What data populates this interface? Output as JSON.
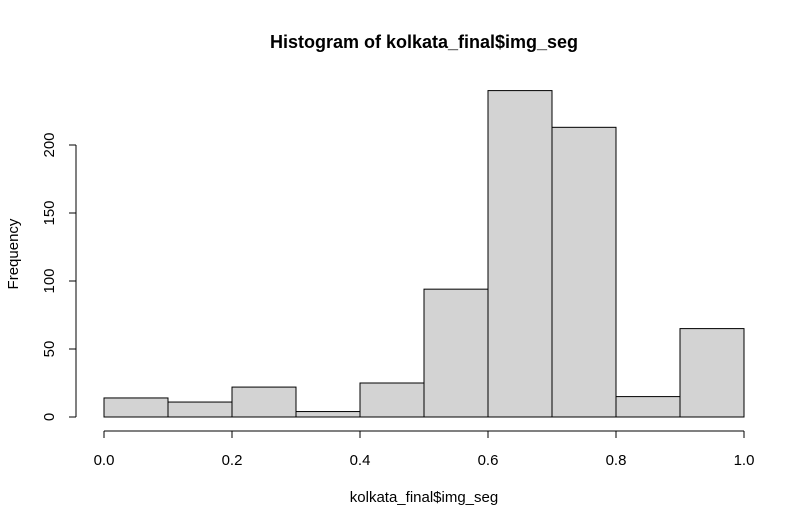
{
  "chart_data": {
    "type": "bar",
    "title": "Histogram of kolkata_final$img_seg",
    "xlabel": "kolkata_final$img_seg",
    "ylabel": "Frequency",
    "bins": [
      {
        "from": 0.0,
        "to": 0.1,
        "count": 14
      },
      {
        "from": 0.1,
        "to": 0.2,
        "count": 11
      },
      {
        "from": 0.2,
        "to": 0.3,
        "count": 22
      },
      {
        "from": 0.3,
        "to": 0.4,
        "count": 4
      },
      {
        "from": 0.4,
        "to": 0.5,
        "count": 25
      },
      {
        "from": 0.5,
        "to": 0.6,
        "count": 94
      },
      {
        "from": 0.6,
        "to": 0.7,
        "count": 240
      },
      {
        "from": 0.7,
        "to": 0.8,
        "count": 213
      },
      {
        "from": 0.8,
        "to": 0.9,
        "count": 15
      },
      {
        "from": 0.9,
        "to": 1.0,
        "count": 65
      }
    ],
    "xlim": [
      0,
      1
    ],
    "ylim": [
      0,
      240
    ],
    "x_ticks": [
      "0.0",
      "0.2",
      "0.4",
      "0.6",
      "0.8",
      "1.0"
    ],
    "y_ticks": [
      "0",
      "50",
      "100",
      "150",
      "200"
    ],
    "grid": false,
    "bar_color": "#d3d3d3",
    "edge_color": "#000000"
  }
}
